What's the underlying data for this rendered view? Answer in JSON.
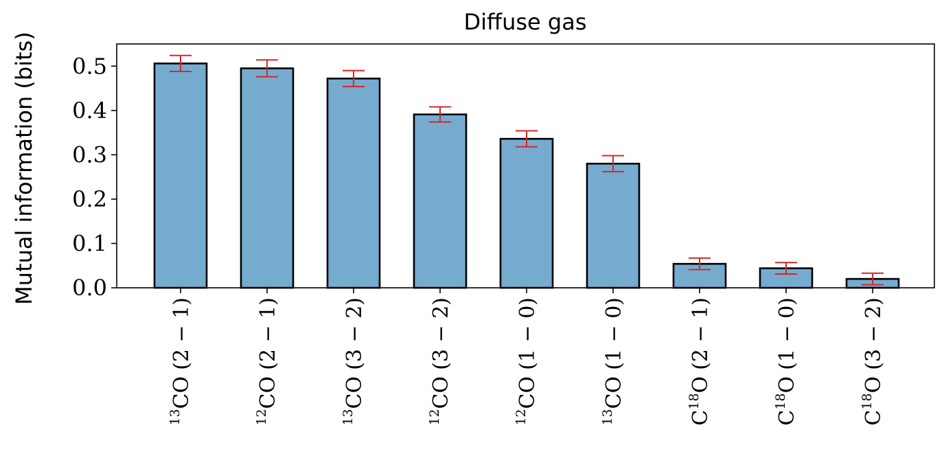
{
  "chart_data": {
    "type": "bar",
    "title": "Diffuse gas",
    "xlabel": "",
    "ylabel": "Mutual information (bits)",
    "ylim": [
      0.0,
      0.55
    ],
    "yticks": [
      "0.0",
      "0.1",
      "0.2",
      "0.3",
      "0.4",
      "0.5"
    ],
    "grid": false,
    "categories": [
      {
        "iso": "13",
        "pre": "",
        "post": "CO",
        "trans": "(2 − 1)"
      },
      {
        "iso": "12",
        "pre": "",
        "post": "CO",
        "trans": "(2 − 1)"
      },
      {
        "iso": "13",
        "pre": "",
        "post": "CO",
        "trans": "(3 − 2)"
      },
      {
        "iso": "12",
        "pre": "",
        "post": "CO",
        "trans": "(3 − 2)"
      },
      {
        "iso": "12",
        "pre": "",
        "post": "CO",
        "trans": "(1 − 0)"
      },
      {
        "iso": "13",
        "pre": "",
        "post": "CO",
        "trans": "(1 − 0)"
      },
      {
        "iso": "18",
        "pre": "C",
        "post": "O",
        "trans": "(2 − 1)"
      },
      {
        "iso": "18",
        "pre": "C",
        "post": "O",
        "trans": "(1 − 0)"
      },
      {
        "iso": "18",
        "pre": "C",
        "post": "O",
        "trans": "(3 − 2)"
      }
    ],
    "values": [
      0.506,
      0.495,
      0.472,
      0.391,
      0.336,
      0.28,
      0.054,
      0.044,
      0.02
    ],
    "errors": [
      0.018,
      0.019,
      0.018,
      0.017,
      0.018,
      0.018,
      0.013,
      0.013,
      0.013
    ],
    "colors": {
      "bar": "#76abd0",
      "edge": "#000000",
      "error": "#d62728"
    }
  }
}
